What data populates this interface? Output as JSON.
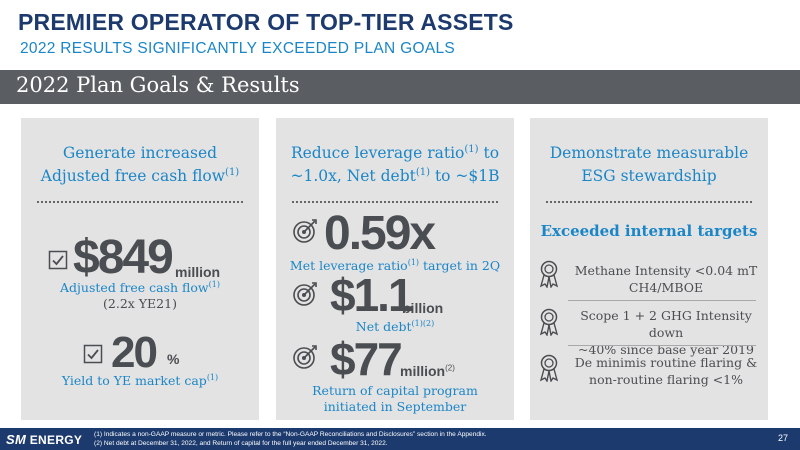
{
  "header": {
    "title": "PREMIER OPERATOR OF TOP-TIER ASSETS",
    "subtitle": "2022 RESULTS SIGNIFICANTLY EXCEEDED PLAN GOALS"
  },
  "banner": {
    "text": "2022 Plan Goals & Results"
  },
  "panel1": {
    "heading_line1": "Generate increased",
    "heading_line2": "Adjusted free cash flow",
    "heading_sup": "(1)",
    "metric1": {
      "value": "$849",
      "unit": "million",
      "label": "Adjusted free cash flow",
      "label_sup": "(1)",
      "note": "(2.2x YE21)"
    },
    "metric2": {
      "value": "20",
      "unit": "%",
      "label": "Yield to YE market cap",
      "label_sup": "(1)"
    }
  },
  "panel2": {
    "heading_part1": "Reduce leverage ratio",
    "heading_sup1": "(1)",
    "heading_part2": " to",
    "heading_part3": "~1.0x, Net debt",
    "heading_sup2": "(1)",
    "heading_part4": " to ~$1B",
    "metric1": {
      "value": "0.59x",
      "label_a": "Met leverage ratio",
      "label_sup": "(1)",
      "label_b": " target in 2Q"
    },
    "metric2": {
      "value": "$1.1",
      "unit": "billion",
      "label": "Net debt",
      "label_sup": "(1)(2)"
    },
    "metric3": {
      "value": "$77",
      "unit": "million",
      "unit_sup": "(2)",
      "label_line1": "Return of capital program",
      "label_line2": "initiated in September"
    }
  },
  "panel3": {
    "heading_line1": "Demonstrate measurable",
    "heading_line2": "ESG stewardship",
    "subheading": "Exceeded internal targets",
    "items": [
      {
        "line1": "Methane Intensity <0.04 mT",
        "line2": "CH4/MBOE"
      },
      {
        "line1": "Scope 1 + 2 GHG Intensity down",
        "line2": "~40% since base year 2019"
      },
      {
        "line1": "De minimis routine flaring &",
        "line2": "non-routine flaring <1%"
      }
    ]
  },
  "footer": {
    "logo_sm": "SM",
    "logo_energy": "ENERGY",
    "footnote1": "(1)   Indicates a non-GAAP measure or metric. Please refer to the “Non-GAAP Reconciliations and Disclosures” section in the Appendix.",
    "footnote2": "(2)   Net debt at December 31, 2022, and Return of capital for the full year ended December 31, 2022.",
    "page_number": "27"
  },
  "colors": {
    "navy": "#1c3a6e",
    "blue": "#1b86c7",
    "gray_banner": "#5a5d61",
    "panel_bg": "#e3e3e3",
    "text_dark": "#4a4d51"
  },
  "icons": [
    "checkbox-icon",
    "target-icon",
    "award-ribbon-icon"
  ]
}
